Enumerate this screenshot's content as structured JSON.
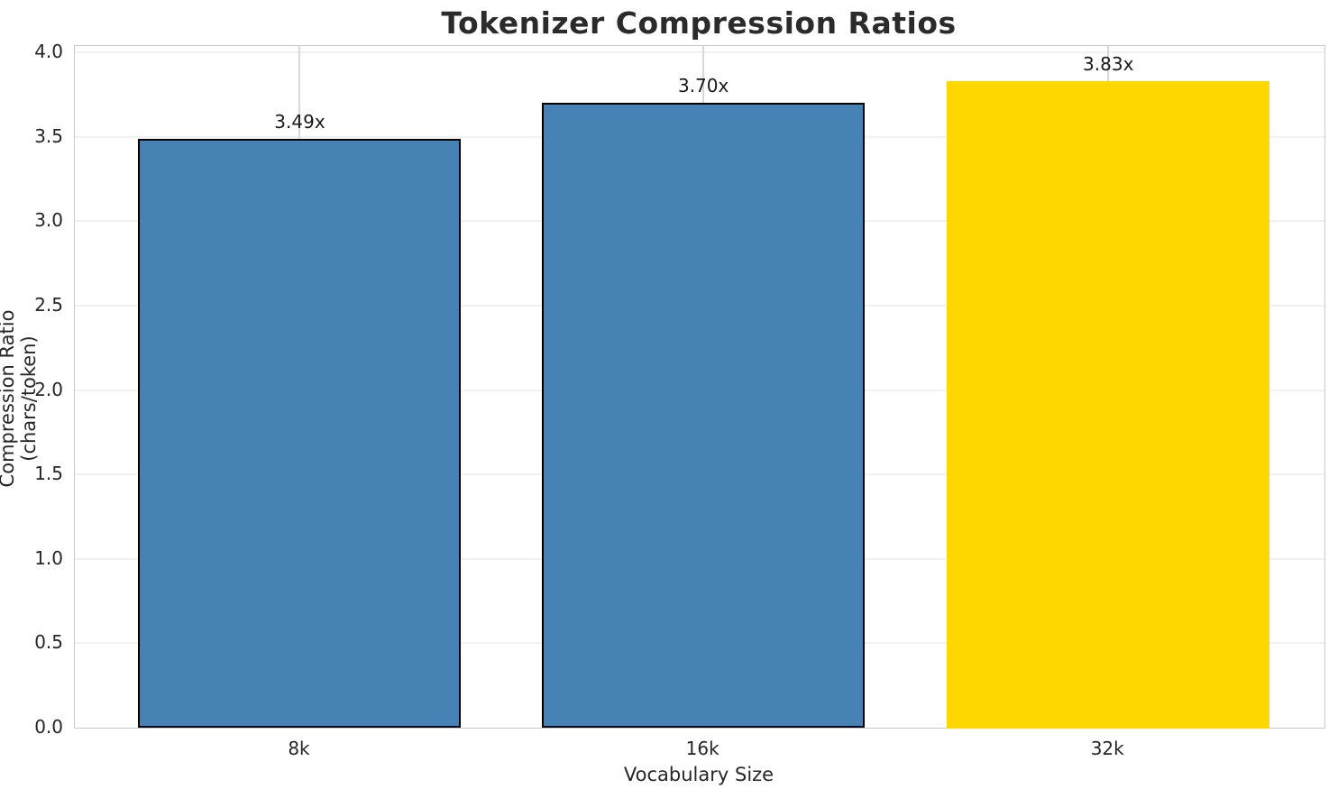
{
  "chart_data": {
    "type": "bar",
    "title": "Tokenizer Compression Ratios",
    "xlabel": "Vocabulary Size",
    "ylabel": "Compression Ratio (chars/token)",
    "categories": [
      "8k",
      "16k",
      "32k"
    ],
    "values": [
      3.49,
      3.7,
      3.83
    ],
    "value_labels": [
      "3.49x",
      "3.70x",
      "3.83x"
    ],
    "bar_colors": [
      "#4682B4",
      "#4682B4",
      "#FFD700"
    ],
    "bar_edge_colors": [
      "#000000",
      "#000000",
      "none"
    ],
    "ylim": [
      0,
      4.0
    ],
    "ytick_values": [
      0.0,
      0.5,
      1.0,
      1.5,
      2.0,
      2.5,
      3.0,
      3.5,
      4.0
    ],
    "ytick_labels": [
      "0.0",
      "0.5",
      "1.0",
      "1.5",
      "2.0",
      "2.5",
      "3.0",
      "3.5",
      "4.0"
    ],
    "grid": true,
    "legend": false
  }
}
